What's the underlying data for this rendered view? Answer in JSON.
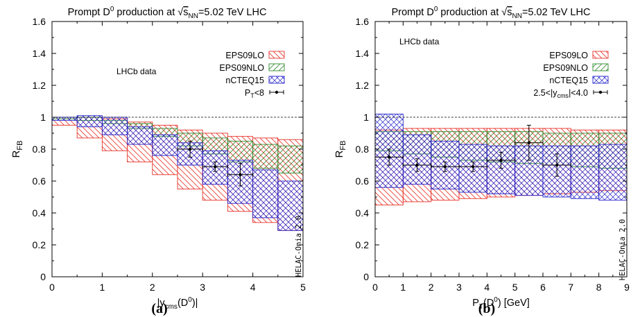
{
  "colors": {
    "eps09lo": "#e8332a",
    "eps09nlo": "#2e8b2e",
    "ncteq15": "#2222cc",
    "data": "#000000"
  },
  "chart_data": [
    {
      "type": "area",
      "panel_label": "(a)",
      "title": "Prompt D0 production at √sNN=5.02 TeV LHC",
      "title_parts": {
        "pre": "Prompt D",
        "sup": "0",
        "mid": " production at ",
        "root": "s",
        "sub": "NN",
        "post": "=5.02 TeV LHC"
      },
      "xlabel": "|ycms(D0)|",
      "xlabel_parts": {
        "pre": "|y",
        "sub": "cms",
        "mid": "(D",
        "sup": "0",
        "post": ")|"
      },
      "ylabel": "RFB",
      "ylabel_parts": {
        "main": "R",
        "sub": "FB"
      },
      "xlim": [
        0,
        5
      ],
      "ylim": [
        0,
        1.6
      ],
      "x_ticks": [
        "0",
        "1",
        "2",
        "3",
        "4",
        "5"
      ],
      "y_ticks": [
        "0",
        "0.2",
        "0.4",
        "0.6",
        "0.8",
        "1",
        "1.2",
        "1.4",
        "1.6"
      ],
      "reference_line": 1.0,
      "annotation": "LHCb data",
      "watermark": "HELAC-Onia 2.0",
      "legend": {
        "placement": "top-right",
        "entries": [
          {
            "label": "EPS09LO"
          },
          {
            "label": "EPS09NLO"
          },
          {
            "label": "nCTEQ15"
          },
          {
            "label": "PT<8",
            "parts": {
              "main": "P",
              "sub": "T",
              "post": "<8"
            }
          }
        ]
      },
      "bin_edges": [
        0,
        0.5,
        1,
        1.5,
        2,
        2.5,
        3,
        3.5,
        4,
        4.5,
        5
      ],
      "series": [
        {
          "name": "EPS09LO",
          "kind": "band",
          "upper": [
            1.0,
            1.0,
            0.99,
            0.97,
            0.95,
            0.92,
            0.9,
            0.88,
            0.87,
            0.86
          ],
          "lower": [
            0.95,
            0.87,
            0.79,
            0.72,
            0.64,
            0.55,
            0.48,
            0.41,
            0.34,
            0.29
          ]
        },
        {
          "name": "EPS09NLO",
          "kind": "band",
          "upper": [
            1.0,
            1.0,
            0.98,
            0.96,
            0.93,
            0.9,
            0.87,
            0.85,
            0.83,
            0.82
          ],
          "lower": [
            0.99,
            0.98,
            0.96,
            0.93,
            0.88,
            0.82,
            0.77,
            0.72,
            0.68,
            0.65
          ]
        },
        {
          "name": "nCTEQ15",
          "kind": "band",
          "upper": [
            1.0,
            1.01,
            1.0,
            0.94,
            0.89,
            0.84,
            0.79,
            0.73,
            0.67,
            0.6
          ],
          "lower": [
            0.98,
            0.94,
            0.89,
            0.83,
            0.76,
            0.7,
            0.58,
            0.46,
            0.37,
            0.29
          ]
        },
        {
          "name": "PT<8",
          "kind": "points",
          "x": [
            2.75,
            3.25,
            3.75
          ],
          "y": [
            0.8,
            0.69,
            0.64
          ],
          "xerr": [
            0.25,
            0.25,
            0.25
          ],
          "yerr": [
            0.05,
            0.03,
            0.07
          ]
        }
      ]
    },
    {
      "type": "area",
      "panel_label": "(b)",
      "title": "Prompt D0 production at √sNN=5.02 TeV LHC",
      "title_parts": {
        "pre": "Prompt D",
        "sup": "0",
        "mid": " production at ",
        "root": "s",
        "sub": "NN",
        "post": "=5.02 TeV LHC"
      },
      "xlabel": "PT(D0) [GeV]",
      "xlabel_parts": {
        "pre": "P",
        "sub": "T",
        "mid": "(D",
        "sup": "0",
        "post": ") [GeV]"
      },
      "ylabel": "RFB",
      "ylabel_parts": {
        "main": "R",
        "sub": "FB"
      },
      "xlim": [
        0,
        9
      ],
      "ylim": [
        0,
        1.6
      ],
      "x_ticks": [
        "0",
        "1",
        "2",
        "3",
        "4",
        "5",
        "6",
        "7",
        "8",
        "9"
      ],
      "y_ticks": [
        "0",
        "0.2",
        "0.4",
        "0.6",
        "0.8",
        "1",
        "1.2",
        "1.4",
        "1.6"
      ],
      "reference_line": 1.0,
      "annotation": "LHCb data",
      "watermark": "HELAC-Onia 2.0",
      "legend": {
        "placement": "top-right",
        "entries": [
          {
            "label": "EPS09LO"
          },
          {
            "label": "EPS09NLO"
          },
          {
            "label": "nCTEQ15"
          },
          {
            "label": "2.5<|ycms|<4.0",
            "parts": {
              "main": "2.5<|y",
              "sub": "cms",
              "post": "|<4.0"
            }
          }
        ]
      },
      "bin_edges": [
        0,
        1,
        2,
        3,
        4,
        5,
        6,
        7,
        8,
        9
      ],
      "series": [
        {
          "name": "EPS09LO",
          "kind": "band",
          "upper": [
            0.92,
            0.93,
            0.93,
            0.93,
            0.93,
            0.93,
            0.93,
            0.92,
            0.92
          ],
          "lower": [
            0.45,
            0.47,
            0.48,
            0.49,
            0.5,
            0.51,
            0.52,
            0.53,
            0.54
          ]
        },
        {
          "name": "EPS09NLO",
          "kind": "band",
          "upper": [
            0.91,
            0.91,
            0.91,
            0.91,
            0.91,
            0.91,
            0.9,
            0.9,
            0.9
          ],
          "lower": [
            0.79,
            0.77,
            0.75,
            0.73,
            0.72,
            0.71,
            0.7,
            0.69,
            0.68
          ]
        },
        {
          "name": "nCTEQ15",
          "kind": "band",
          "upper": [
            1.02,
            0.89,
            0.85,
            0.83,
            0.82,
            0.82,
            0.82,
            0.82,
            0.83
          ],
          "lower": [
            0.56,
            0.58,
            0.55,
            0.53,
            0.52,
            0.51,
            0.5,
            0.49,
            0.48
          ]
        },
        {
          "name": "2.5<|ycms|<4.0",
          "kind": "points",
          "x": [
            0.5,
            1.5,
            2.5,
            3.5,
            4.5,
            5.5,
            6.5
          ],
          "y": [
            0.75,
            0.7,
            0.69,
            0.69,
            0.73,
            0.84,
            0.7
          ],
          "xerr": [
            0.5,
            0.5,
            0.5,
            0.5,
            0.5,
            0.5,
            0.5
          ],
          "yerr": [
            0.05,
            0.04,
            0.03,
            0.03,
            0.05,
            0.11,
            0.07
          ]
        }
      ]
    }
  ]
}
